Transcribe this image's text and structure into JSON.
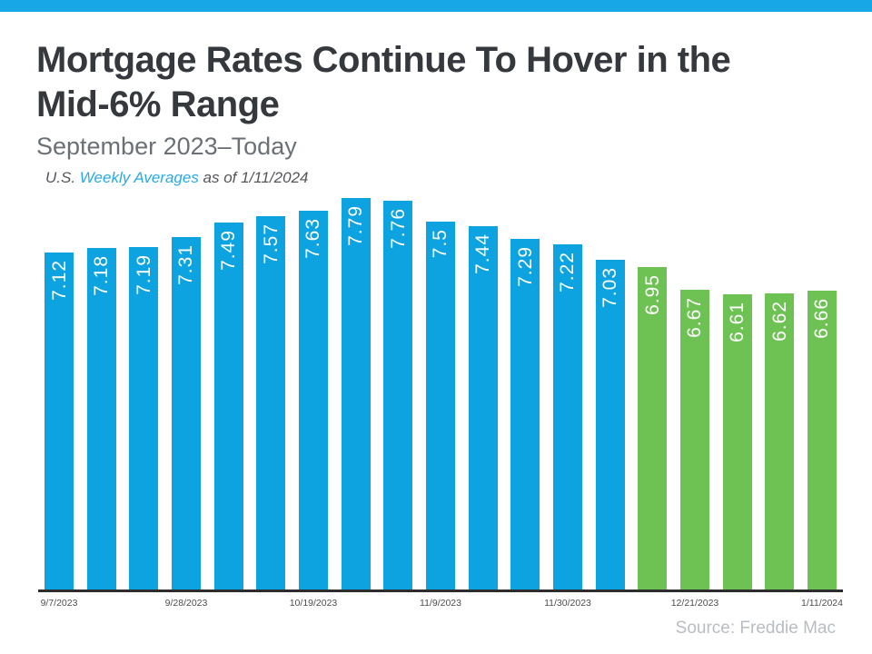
{
  "page": {
    "background": "#ffffff",
    "top_bar_color": "#17a7e6"
  },
  "header": {
    "title_lines": [
      "Mortgage Rates Continue To Hover in the",
      "Mid-6% Range"
    ],
    "subtitle": "September 2023–Today",
    "note_prefix": "U.S. ",
    "note_link": "Weekly Averages",
    "note_suffix": " as of 1/11/2024"
  },
  "footer": {
    "source": "Source: Freddie Mac"
  },
  "chart_data": {
    "type": "bar",
    "title": "Mortgage Rates Continue To Hover in the Mid-6% Range",
    "subtitle": "September 2023–Today",
    "annotation": "U.S. Weekly Averages as of 1/11/2024",
    "source": "Source: Freddie Mac",
    "values": [
      7.12,
      7.18,
      7.19,
      7.31,
      7.49,
      7.57,
      7.63,
      7.79,
      7.76,
      7.5,
      7.44,
      7.29,
      7.22,
      7.03,
      6.95,
      6.67,
      6.61,
      6.62,
      6.66
    ],
    "bar_colors": [
      "#0da3e0",
      "#0da3e0",
      "#0da3e0",
      "#0da3e0",
      "#0da3e0",
      "#0da3e0",
      "#0da3e0",
      "#0da3e0",
      "#0da3e0",
      "#0da3e0",
      "#0da3e0",
      "#0da3e0",
      "#0da3e0",
      "#0da3e0",
      "#6ec254",
      "#6ec254",
      "#6ec254",
      "#6ec254",
      "#6ec254"
    ],
    "colors": {
      "blue": "#0da3e0",
      "green": "#6ec254",
      "axis": "#2d2d2d",
      "value_label": "#ffffff"
    },
    "x_ticks": [
      {
        "label": "9/7/2023",
        "bar_index": 0
      },
      {
        "label": "9/28/2023",
        "bar_index": 3
      },
      {
        "label": "10/19/2023",
        "bar_index": 6
      },
      {
        "label": "11/9/2023",
        "bar_index": 9
      },
      {
        "label": "11/30/2023",
        "bar_index": 12
      },
      {
        "label": "12/21/2023",
        "bar_index": 15
      },
      {
        "label": "1/11/2024",
        "bar_index": 18
      }
    ],
    "ylim": [
      3,
      7.9
    ],
    "value_labels_shown": true,
    "value_label_rotation": "vertical-bottom-to-top",
    "legend": "none",
    "grid": false,
    "xlabel": "",
    "ylabel": ""
  }
}
